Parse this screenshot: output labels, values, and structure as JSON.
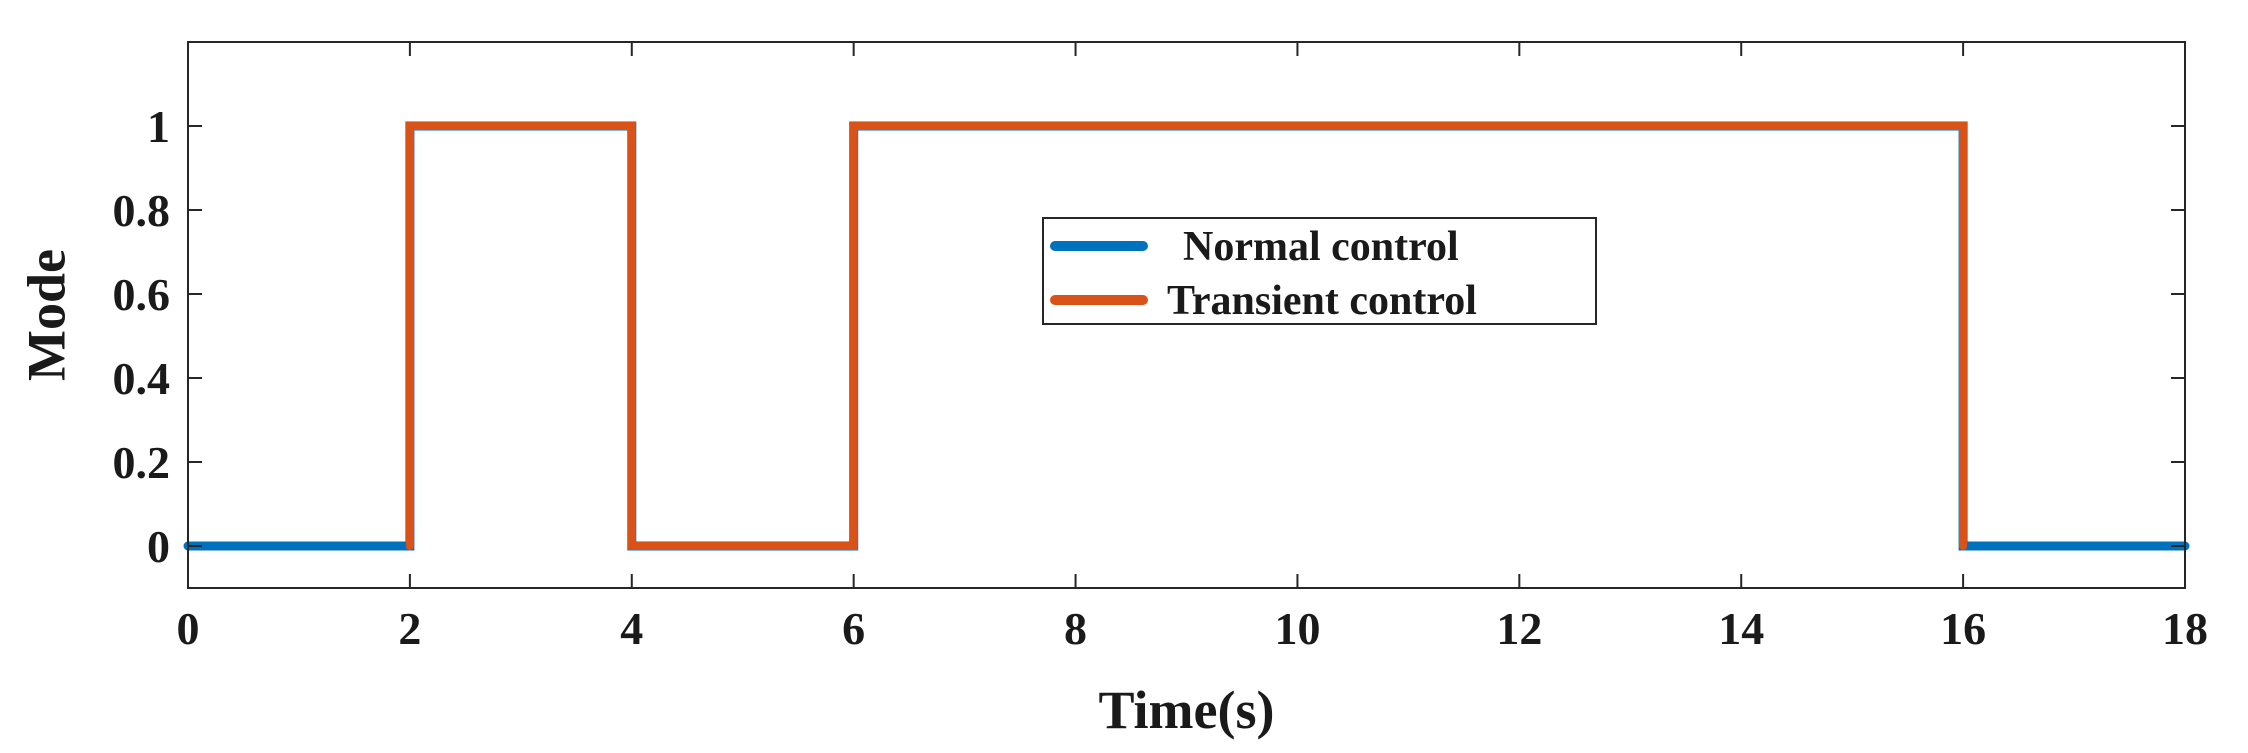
{
  "chart_data": {
    "type": "line",
    "title": "",
    "xlabel": "Time(s)",
    "ylabel": "Mode",
    "xlim": [
      0,
      18
    ],
    "ylim": [
      -0.1,
      1.2
    ],
    "xticks": [
      0,
      2,
      4,
      6,
      8,
      10,
      12,
      14,
      16,
      18
    ],
    "xtick_labels": [
      "0",
      "2",
      "4",
      "6",
      "8",
      "10",
      "12",
      "14",
      "16",
      "18"
    ],
    "yticks": [
      0,
      0.2,
      0.4,
      0.6,
      0.8,
      1
    ],
    "ytick_labels": [
      "0",
      "0.2",
      "0.4",
      "0.6",
      "0.8",
      "1"
    ],
    "grid": false,
    "legend_position": "center",
    "series": [
      {
        "name": "Normal control",
        "color": "#0072BD",
        "x": [
          0,
          2,
          2,
          4,
          4,
          6,
          6,
          16,
          16,
          18
        ],
        "y": [
          0,
          0,
          1,
          1,
          0,
          0,
          1,
          1,
          0,
          0
        ]
      },
      {
        "name": "Transient control",
        "color": "#D95319",
        "x": [
          2,
          2,
          4,
          4,
          6,
          6,
          16,
          16
        ],
        "y": [
          0,
          1,
          1,
          0,
          0,
          1,
          1,
          0
        ]
      }
    ]
  }
}
